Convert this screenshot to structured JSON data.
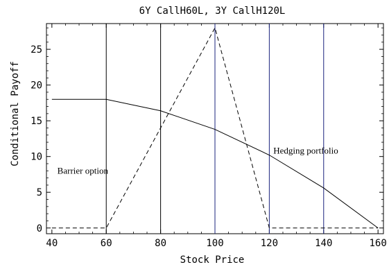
{
  "chart_data": {
    "type": "line",
    "title": "6Y CallH60L, 3Y CallH120L",
    "xlabel": "Stock Price",
    "ylabel": "Conditional Payoff",
    "xlim": [
      38,
      162
    ],
    "ylim": [
      -0.8,
      28.6
    ],
    "x_ticks": [
      40,
      60,
      80,
      100,
      120,
      140,
      160
    ],
    "y_ticks": [
      0,
      5,
      10,
      15,
      20,
      25
    ],
    "x_minor_step": 5,
    "y_minor_step": 1,
    "grid": false,
    "series": [
      {
        "name": "Hedging portfolio",
        "style": "solid",
        "color": "#000000",
        "x": [
          40,
          60,
          80,
          100,
          120,
          140,
          160
        ],
        "y": [
          18.0,
          18.0,
          16.4,
          13.8,
          10.2,
          5.6,
          0.0
        ]
      },
      {
        "name": "Barrier option",
        "style": "dashed",
        "color": "#000000",
        "x": [
          40,
          60,
          100,
          120,
          160
        ],
        "y": [
          0,
          0,
          28,
          0,
          0
        ]
      }
    ],
    "vertical_lines": [
      {
        "x": 60,
        "color": "#000000"
      },
      {
        "x": 80,
        "color": "#000000"
      },
      {
        "x": 100,
        "color": "#1a237e"
      },
      {
        "x": 120,
        "color": "#1a237e"
      },
      {
        "x": 140,
        "color": "#1a237e"
      }
    ],
    "annotations": [
      {
        "text": "Barrier option",
        "x": 42,
        "y": 7.6
      },
      {
        "text": "Hedging portfolio",
        "x": 121.5,
        "y": 10.4
      }
    ]
  }
}
